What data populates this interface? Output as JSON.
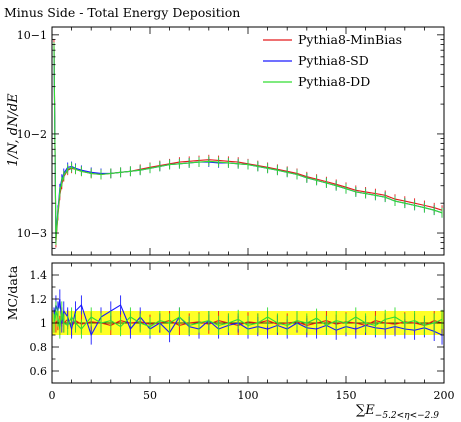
{
  "chart_data": [
    {
      "type": "line",
      "title": "Minus Side - Total Energy Deposition",
      "ylabel": "1/N, dN/dE",
      "yscale": "log",
      "ylim": [
        0.0006,
        0.12
      ],
      "xlim": [
        0,
        200
      ],
      "ytick_labels": [
        "10−1",
        "10−2",
        "10−3"
      ],
      "ytick_values": [
        0.1,
        0.01,
        0.001
      ],
      "legend_position": "top-right",
      "x": [
        1,
        2,
        3,
        4,
        5,
        6,
        8,
        10,
        12,
        15,
        20,
        25,
        30,
        35,
        40,
        45,
        50,
        55,
        60,
        65,
        70,
        75,
        80,
        85,
        90,
        95,
        100,
        105,
        110,
        115,
        120,
        125,
        130,
        135,
        140,
        145,
        150,
        155,
        160,
        165,
        170,
        175,
        180,
        185,
        190,
        195,
        199
      ],
      "series": [
        {
          "name": "Pythia8-MinBias",
          "color": "#e31a1c",
          "values": [
            0.08,
            0.0008,
            0.0015,
            0.0024,
            0.0031,
            0.0037,
            0.0043,
            0.0045,
            0.0044,
            0.0042,
            0.004,
            0.0039,
            0.004,
            0.0041,
            0.0042,
            0.0044,
            0.0046,
            0.0048,
            0.005,
            0.0052,
            0.0053,
            0.0054,
            0.0055,
            0.0054,
            0.0053,
            0.0052,
            0.005,
            0.0048,
            0.0046,
            0.0044,
            0.0042,
            0.004,
            0.0037,
            0.0035,
            0.0033,
            0.0031,
            0.0029,
            0.0027,
            0.0026,
            0.0025,
            0.0024,
            0.0022,
            0.0021,
            0.002,
            0.0019,
            0.0018,
            0.0017
          ]
        },
        {
          "name": "Pythia8-SD",
          "color": "#1a1aff",
          "values": [
            0.07,
            0.0009,
            0.0017,
            0.0028,
            0.0035,
            0.004,
            0.0046,
            0.0047,
            0.0045,
            0.0043,
            0.0041,
            0.004,
            0.004,
            0.0041,
            0.0042,
            0.0043,
            0.0045,
            0.0047,
            0.0049,
            0.005,
            0.0051,
            0.0052,
            0.0052,
            0.0051,
            0.0051,
            0.005,
            0.0049,
            0.0047,
            0.0045,
            0.0043,
            0.0041,
            0.0039,
            0.0036,
            0.0034,
            0.0032,
            0.003,
            0.0028,
            0.0026,
            0.0025,
            0.0024,
            0.0023,
            0.0021,
            0.002,
            0.0019,
            0.0018,
            0.0017,
            0.0016
          ]
        },
        {
          "name": "Pythia8-DD",
          "color": "#33dd33",
          "values": [
            0.075,
            0.00085,
            0.0016,
            0.0026,
            0.0033,
            0.0038,
            0.0044,
            0.0046,
            0.0044,
            0.0042,
            0.004,
            0.0039,
            0.004,
            0.0041,
            0.0042,
            0.0043,
            0.0045,
            0.0047,
            0.0049,
            0.005,
            0.0051,
            0.0052,
            0.0053,
            0.0052,
            0.0051,
            0.005,
            0.0049,
            0.0047,
            0.0045,
            0.0043,
            0.0041,
            0.0039,
            0.0036,
            0.0034,
            0.0032,
            0.003,
            0.0028,
            0.0026,
            0.0025,
            0.0024,
            0.0023,
            0.0021,
            0.002,
            0.0019,
            0.0018,
            0.0017,
            0.0016
          ]
        }
      ]
    },
    {
      "type": "line",
      "ylabel": "MC/data",
      "xlabel": "∑E",
      "xlabel_sub": "−5.2<η<−2.9",
      "ylim": [
        0.5,
        1.5
      ],
      "xlim": [
        0,
        200
      ],
      "ytick_values": [
        0.6,
        0.8,
        1.0,
        1.2,
        1.4
      ],
      "ytick_labels": [
        "0.6",
        "0.8",
        "1",
        "1.2",
        "1.4"
      ],
      "xtick_values": [
        0,
        50,
        100,
        150,
        200
      ],
      "xtick_labels": [
        "0",
        "50",
        "100",
        "150",
        "200"
      ],
      "band_color": "#ffff00",
      "band_halfwidth": 0.1,
      "x": [
        1,
        2,
        3,
        4,
        5,
        6,
        8,
        10,
        12,
        15,
        20,
        25,
        30,
        35,
        40,
        45,
        50,
        55,
        60,
        65,
        70,
        75,
        80,
        85,
        90,
        95,
        100,
        105,
        110,
        115,
        120,
        125,
        130,
        135,
        140,
        145,
        150,
        155,
        160,
        165,
        170,
        175,
        180,
        185,
        190,
        195,
        199
      ],
      "series": [
        {
          "name": "Pythia8-MinBias",
          "color": "#e31a1c",
          "values": [
            1.0,
            1.0,
            1.02,
            0.98,
            1.05,
            1.0,
            1.03,
            0.97,
            1.02,
            0.99,
            1.01,
            1.0,
            0.98,
            1.02,
            1.0,
            1.01,
            0.99,
            1.0,
            1.02,
            0.98,
            1.0,
            1.01,
            0.99,
            1.02,
            1.0,
            0.98,
            1.01,
            1.0,
            1.02,
            0.99,
            1.0,
            1.01,
            0.98,
            1.0,
            1.02,
            0.99,
            1.01,
            1.0,
            0.98,
            1.02,
            1.0,
            0.99,
            1.01,
            1.0,
            0.98,
            1.02,
            1.0
          ]
        },
        {
          "name": "Pythia8-SD",
          "color": "#1a1aff",
          "values": [
            1.05,
            1.15,
            1.1,
            1.2,
            1.0,
            1.1,
            1.05,
            0.95,
            1.1,
            1.15,
            0.9,
            1.05,
            1.1,
            1.15,
            0.95,
            1.05,
            0.95,
            1.0,
            0.92,
            1.05,
            0.97,
            0.95,
            1.02,
            0.95,
            0.98,
            1.0,
            0.95,
            0.97,
            0.95,
            0.98,
            0.95,
            1.0,
            0.96,
            0.95,
            0.98,
            0.94,
            0.97,
            0.95,
            0.98,
            0.96,
            0.95,
            0.97,
            0.95,
            0.94,
            0.96,
            0.93,
            0.9
          ]
        },
        {
          "name": "Pythia8-DD",
          "color": "#33dd33",
          "values": [
            1.0,
            1.1,
            1.05,
            0.95,
            1.1,
            1.0,
            0.98,
            1.05,
            1.0,
            0.95,
            1.05,
            1.0,
            1.02,
            0.97,
            1.05,
            1.0,
            0.97,
            1.02,
            1.0,
            1.05,
            0.98,
            1.0,
            1.02,
            0.98,
            1.0,
            1.03,
            0.98,
            1.0,
            1.05,
            1.0,
            0.98,
            1.02,
            1.0,
            1.04,
            0.98,
            1.02,
            1.0,
            1.05,
            1.0,
            0.98,
            1.03,
            1.05,
            1.0,
            1.02,
            0.98,
            1.0,
            1.03
          ]
        }
      ]
    }
  ]
}
